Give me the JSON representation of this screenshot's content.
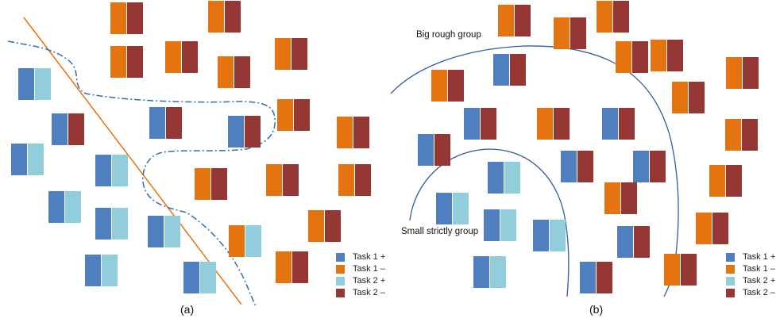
{
  "colors": {
    "task1_pos": "#4f7fbf",
    "task1_neg": "#e5730f",
    "task2_pos": "#92cddc",
    "task2_neg": "#953735",
    "boundary_line": "#e5730f",
    "dashed_curve": "#2f6fb0",
    "group_arcs": "#2f5f9f"
  },
  "legend_entries": [
    {
      "key": "task1_pos",
      "label": "Task 1 +"
    },
    {
      "key": "task1_neg",
      "label": "Task 1 –"
    },
    {
      "key": "task2_pos",
      "label": "Task 2 +"
    },
    {
      "key": "task2_neg",
      "label": "Task 2 –"
    }
  ],
  "panel_a": {
    "caption": "(a)"
  },
  "panel_b": {
    "caption": "(b)",
    "group_big_label": "Big rough group",
    "group_small_label": "Small strictly group"
  },
  "items_a": [
    [
      "task1_neg",
      "task2_neg"
    ],
    [
      "task1_neg",
      "task2_neg"
    ],
    [
      "task1_neg",
      "task2_neg"
    ],
    [
      "task1_neg",
      "task2_neg"
    ],
    [
      "task1_neg",
      "task2_neg"
    ],
    [
      "task1_neg",
      "task2_neg"
    ],
    [
      "task1_pos",
      "task2_pos"
    ],
    [
      "task1_pos",
      "task2_neg"
    ],
    [
      "task1_pos",
      "task2_neg"
    ],
    [
      "task1_pos",
      "task2_neg"
    ],
    [
      "task1_neg",
      "task2_neg"
    ],
    [
      "task1_neg",
      "task2_neg"
    ],
    [
      "task1_pos",
      "task2_pos"
    ],
    [
      "task1_pos",
      "task2_pos"
    ],
    [
      "task1_neg",
      "task2_neg"
    ],
    [
      "task1_neg",
      "task2_neg"
    ],
    [
      "task1_neg",
      "task2_neg"
    ],
    [
      "task1_pos",
      "task2_pos"
    ],
    [
      "task1_pos",
      "task2_pos"
    ],
    [
      "task1_pos",
      "task2_pos"
    ],
    [
      "task1_neg",
      "task2_neg"
    ],
    [
      "task1_neg",
      "task2_pos"
    ],
    [
      "task1_pos",
      "task2_pos"
    ],
    [
      "task1_pos",
      "task2_pos"
    ],
    [
      "task1_neg",
      "task2_neg"
    ]
  ],
  "items_b": [
    [
      "task1_neg",
      "task2_neg"
    ],
    [
      "task1_neg",
      "task2_neg"
    ],
    [
      "task1_neg",
      "task2_neg"
    ],
    [
      "task1_neg",
      "task2_neg"
    ],
    [
      "task1_neg",
      "task2_neg"
    ],
    [
      "task1_neg",
      "task2_neg"
    ],
    [
      "task1_pos",
      "task2_neg"
    ],
    [
      "task1_neg",
      "task2_neg"
    ],
    [
      "task1_neg",
      "task2_neg"
    ],
    [
      "task1_pos",
      "task2_neg"
    ],
    [
      "task1_neg",
      "task2_neg"
    ],
    [
      "task1_pos",
      "task2_neg"
    ],
    [
      "task1_neg",
      "task2_neg"
    ],
    [
      "task1_pos",
      "task2_neg"
    ],
    [
      "task1_pos",
      "task2_neg"
    ],
    [
      "task1_pos",
      "task2_neg"
    ],
    [
      "task1_pos",
      "task2_pos"
    ],
    [
      "task1_neg",
      "task2_neg"
    ],
    [
      "task1_neg",
      "task2_neg"
    ],
    [
      "task1_pos",
      "task2_pos"
    ],
    [
      "task1_pos",
      "task2_pos"
    ],
    [
      "task1_pos",
      "task2_pos"
    ],
    [
      "task1_pos",
      "task2_neg"
    ],
    [
      "task1_neg",
      "task2_neg"
    ],
    [
      "task1_pos",
      "task2_pos"
    ],
    [
      "task1_neg",
      "task2_neg"
    ],
    [
      "task1_pos",
      "task2_neg"
    ]
  ]
}
